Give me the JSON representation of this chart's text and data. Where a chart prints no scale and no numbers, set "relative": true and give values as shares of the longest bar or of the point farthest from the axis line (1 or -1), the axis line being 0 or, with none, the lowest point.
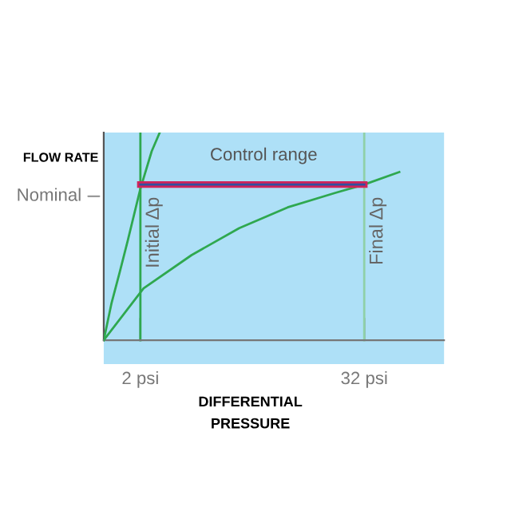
{
  "chart_data": {
    "type": "line",
    "relative": true,
    "xlabel": "DIFFERENTIAL\nPRESSURE",
    "ylabel": "FLOW RATE",
    "log": "x",
    "xlim": [
      1.27,
      86
    ],
    "xticks": [
      {
        "value": 2,
        "label": "2 psi"
      },
      {
        "value": 32,
        "label": "32 psi"
      }
    ],
    "series": [
      {
        "color": "#2fa84f",
        "x": [
          1.27,
          1.4,
          1.55,
          1.71,
          2.0,
          2.3,
          2.54
        ],
        "values": [
          0,
          0.18,
          0.33,
          0.48,
          0.73,
          0.91,
          1.0
        ]
      },
      {
        "color": "#2fa84f",
        "x": [
          1.27,
          2.08,
          3.77,
          6.8,
          12.4,
          22.4,
          32,
          49.4
        ],
        "values": [
          0,
          0.25,
          0.41,
          0.54,
          0.64,
          0.71,
          0.75,
          0.81
        ]
      },
      {
        "color": "#d0245a",
        "x": [
          2,
          32
        ],
        "values": [
          0.75,
          0.75
        ]
      }
    ],
    "ref_lines": [
      {
        "axis": "x",
        "value": 2,
        "label": "Initial Δp",
        "color": "#2fa84f"
      },
      {
        "axis": "x",
        "value": 32,
        "label": "Final Δp",
        "color": "#8fd0a8"
      }
    ],
    "annotations": [
      "Control range",
      "Nominal"
    ],
    "grid": false,
    "legend": false
  }
}
